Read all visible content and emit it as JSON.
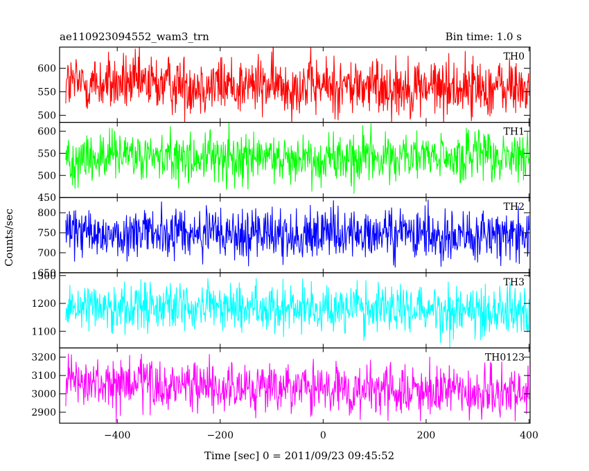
{
  "header": {
    "title": "ae110923094552_wam3_trn",
    "bin_time": "Bin time: 1.0 s"
  },
  "chart_data": {
    "type": "line",
    "xlabel": "Time [sec] 0 = 2011/09/23 09:45:52",
    "ylabel": "Counts/sec",
    "xlim": [
      -512,
      402
    ],
    "xticks": [
      -400,
      -200,
      0,
      200,
      400
    ],
    "xtick_labels": [
      "−400",
      "−200",
      "0",
      "200",
      "400"
    ],
    "grid": false,
    "panels": [
      {
        "name": "TH0",
        "color": "#ff0000",
        "ylim": [
          485,
          645
        ],
        "yticks": [
          500,
          550,
          600
        ],
        "mean": 568,
        "spread": 32,
        "trend_end": -10
      },
      {
        "name": "TH1",
        "color": "#00ff00",
        "ylim": [
          450,
          620
        ],
        "yticks": [
          450,
          500,
          550,
          600
        ],
        "mean": 540,
        "spread": 30,
        "trend_end": 0
      },
      {
        "name": "TH2",
        "color": "#0000ff",
        "ylim": [
          650,
          838
        ],
        "yticks": [
          650,
          700,
          750,
          800
        ],
        "mean": 748,
        "spread": 33,
        "trend_end": -5
      },
      {
        "name": "TH3",
        "color": "#00ffff",
        "ylim": [
          1040,
          1310
        ],
        "yticks": [
          1100,
          1200,
          1300
        ],
        "mean": 1195,
        "spread": 45,
        "trend_end": -20
      },
      {
        "name": "TH0123",
        "color": "#ff00ff",
        "ylim": [
          2840,
          3250
        ],
        "yticks": [
          2900,
          3000,
          3100,
          3200
        ],
        "mean": 3055,
        "spread": 70,
        "trend_end": -60
      }
    ]
  }
}
